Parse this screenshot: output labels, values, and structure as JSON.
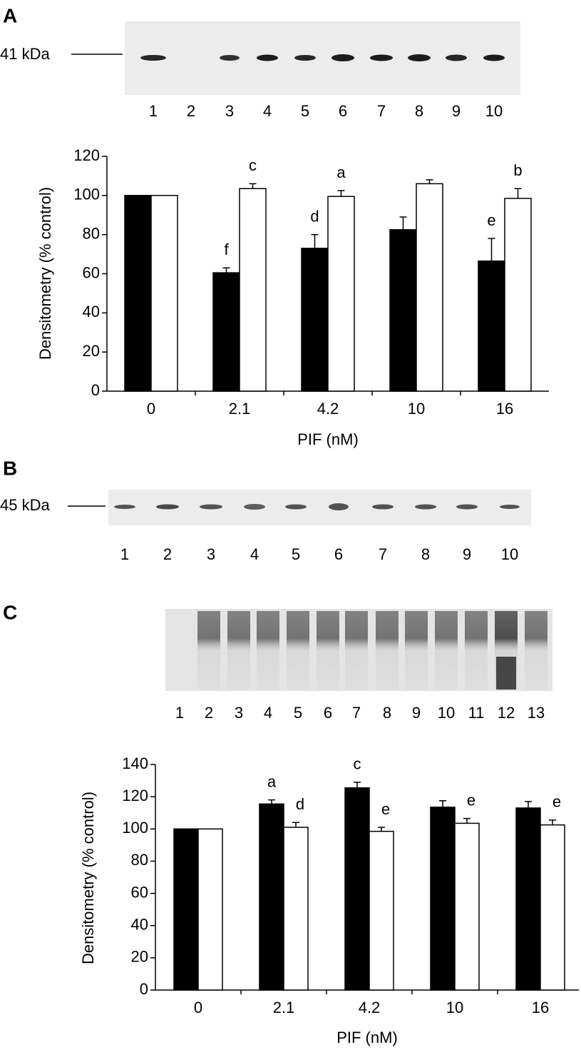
{
  "figure": {
    "panels": [
      {
        "label": "A"
      },
      {
        "label": "B"
      },
      {
        "label": "C"
      }
    ],
    "blots": [
      {
        "marker": "41 kDa",
        "lanes": [
          1,
          2,
          3,
          4,
          5,
          6,
          7,
          8,
          9,
          10
        ]
      },
      {
        "marker": "45 kDa",
        "lanes": [
          1,
          2,
          3,
          4,
          5,
          6,
          7,
          8,
          9,
          10
        ]
      },
      {
        "lanes": [
          1,
          2,
          3,
          4,
          5,
          6,
          7,
          8,
          9,
          10,
          11,
          12,
          13
        ]
      }
    ]
  },
  "chart_data": [
    {
      "type": "bar",
      "ylabel": "Densitometry (% control)",
      "xlabel": "PIF (nM)",
      "categories": [
        "0",
        "2.1",
        "4.2",
        "10",
        "16"
      ],
      "ylim": [
        0,
        120
      ],
      "yticks": [
        0,
        20,
        40,
        60,
        80,
        100,
        120
      ],
      "series": [
        {
          "color": "#000000",
          "values": [
            100,
            60.5,
            73,
            82.5,
            66.5
          ],
          "errors": [
            0,
            2.5,
            7,
            6.5,
            11.5
          ],
          "labels": [
            null,
            "f",
            "d",
            null,
            "e"
          ]
        },
        {
          "color": "#ffffff",
          "values": [
            100,
            103.5,
            99.5,
            106,
            98.5
          ],
          "errors": [
            0,
            2.5,
            3,
            2,
            5
          ],
          "labels": [
            null,
            "c",
            "a",
            null,
            "b"
          ]
        }
      ]
    },
    {
      "type": "bar",
      "ylabel": "Densitometry (% control)",
      "xlabel": "PIF (nM)",
      "categories": [
        "0",
        "2.1",
        "4.2",
        "10",
        "16"
      ],
      "ylim": [
        0,
        140
      ],
      "yticks": [
        0,
        20,
        40,
        60,
        80,
        100,
        120,
        140
      ],
      "series": [
        {
          "color": "#000000",
          "values": [
            100,
            115.5,
            125.5,
            113.5,
            113
          ],
          "errors": [
            0,
            2.5,
            3.5,
            4,
            4
          ],
          "labels": [
            null,
            "a",
            "c",
            null,
            null
          ]
        },
        {
          "color": "#ffffff",
          "values": [
            100,
            101,
            98.5,
            103.5,
            102.5
          ],
          "errors": [
            0,
            3,
            2.5,
            3,
            3
          ],
          "labels": [
            null,
            "d",
            "e",
            "e",
            "e"
          ]
        }
      ]
    }
  ]
}
